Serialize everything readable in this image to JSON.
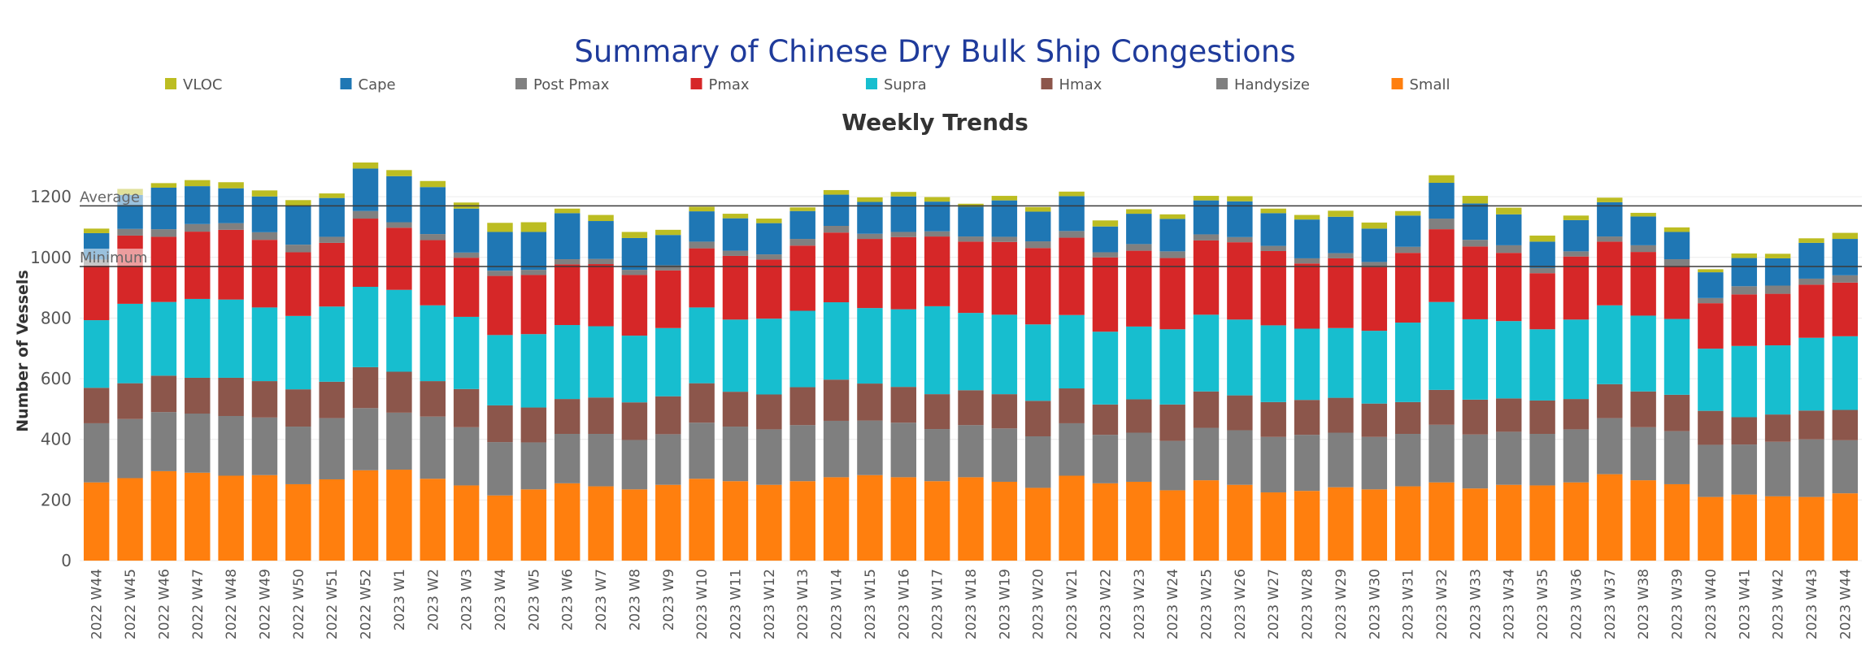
{
  "chart_data": {
    "type": "bar",
    "stacked": true,
    "title": "Summary of Chinese Dry Bulk Ship Congestions",
    "subtitle": "Weekly Trends",
    "ylabel": "Number of Vessels",
    "xlabel": "",
    "ylim": [
      0,
      1380
    ],
    "yticks": [
      0,
      200,
      400,
      600,
      800,
      1000,
      1200
    ],
    "reference_lines": [
      {
        "label": "Average",
        "value": 1170
      },
      {
        "label": "Minimum",
        "value": 970
      }
    ],
    "legend": [
      "VLOC",
      "Cape",
      "Post Pmax",
      "Pmax",
      "Supra",
      "Hmax",
      "Handysize",
      "Small"
    ],
    "categories": [
      "2022 W44",
      "2022 W45",
      "2022 W46",
      "2022 W47",
      "2022 W48",
      "2022 W49",
      "2022 W50",
      "2022 W51",
      "2022 W52",
      "2023 W1",
      "2023 W2",
      "2023 W3",
      "2023 W4",
      "2023 W5",
      "2023 W6",
      "2023 W7",
      "2023 W8",
      "2023 W9",
      "2023 W10",
      "2023 W11",
      "2023 W12",
      "2023 W13",
      "2023 W14",
      "2023 W15",
      "2023 W16",
      "2023 W17",
      "2023 W18",
      "2023 W19",
      "2023 W20",
      "2023 W21",
      "2023 W22",
      "2023 W23",
      "2023 W24",
      "2023 W25",
      "2023 W26",
      "2023 W27",
      "2023 W28",
      "2023 W29",
      "2023 W30",
      "2023 W31",
      "2023 W32",
      "2023 W33",
      "2023 W34",
      "2023 W35",
      "2023 W36",
      "2023 W37",
      "2023 W38",
      "2023 W39",
      "2023 W40",
      "2023 W41",
      "2023 W42",
      "2023 W43",
      "2023 W44"
    ],
    "series": [
      {
        "name": "Small",
        "color": "#ff7f0e",
        "values": [
          258,
          272,
          295,
          290,
          280,
          282,
          252,
          268,
          298,
          300,
          270,
          248,
          215,
          235,
          255,
          245,
          235,
          250,
          270,
          262,
          250,
          262,
          275,
          282,
          275,
          262,
          275,
          260,
          240,
          280,
          255,
          260,
          232,
          265,
          250,
          225,
          230,
          242,
          235,
          245,
          258,
          238,
          250,
          248,
          258,
          285,
          265,
          252,
          210,
          218,
          212,
          210,
          222
        ]
      },
      {
        "name": "Handysize",
        "color": "#7f7f7f",
        "values": [
          195,
          195,
          195,
          195,
          197,
          190,
          190,
          202,
          205,
          188,
          205,
          192,
          176,
          155,
          163,
          173,
          163,
          167,
          185,
          180,
          183,
          185,
          186,
          180,
          180,
          172,
          172,
          176,
          170,
          173,
          160,
          162,
          163,
          173,
          180,
          183,
          185,
          180,
          173,
          173,
          190,
          178,
          175,
          170,
          175,
          185,
          175,
          175,
          172,
          165,
          180,
          190,
          175
        ]
      },
      {
        "name": "Hmax",
        "color": "#8c564b",
        "values": [
          117,
          118,
          120,
          118,
          126,
          120,
          123,
          120,
          135,
          135,
          117,
          126,
          121,
          115,
          115,
          120,
          124,
          125,
          130,
          115,
          115,
          125,
          136,
          122,
          118,
          115,
          115,
          113,
          117,
          115,
          100,
          110,
          120,
          120,
          115,
          115,
          115,
          115,
          110,
          105,
          115,
          115,
          110,
          110,
          100,
          112,
          118,
          120,
          112,
          90,
          90,
          95,
          100
        ]
      },
      {
        "name": "Supra",
        "color": "#17becf",
        "values": [
          223,
          262,
          243,
          260,
          258,
          243,
          242,
          248,
          265,
          270,
          250,
          238,
          232,
          242,
          244,
          235,
          220,
          225,
          250,
          238,
          250,
          252,
          255,
          249,
          256,
          290,
          255,
          262,
          252,
          242,
          240,
          240,
          248,
          253,
          250,
          253,
          235,
          230,
          240,
          262,
          290,
          265,
          255,
          235,
          262,
          260,
          250,
          250,
          205,
          235,
          228,
          240,
          243
        ]
      },
      {
        "name": "Pmax",
        "color": "#d62728",
        "values": [
          180,
          225,
          215,
          222,
          230,
          223,
          210,
          210,
          225,
          205,
          215,
          195,
          195,
          195,
          200,
          205,
          200,
          190,
          195,
          210,
          195,
          215,
          230,
          228,
          238,
          230,
          235,
          240,
          252,
          255,
          245,
          250,
          235,
          245,
          255,
          245,
          215,
          230,
          210,
          230,
          240,
          240,
          225,
          185,
          208,
          210,
          210,
          175,
          150,
          170,
          170,
          175,
          177
        ]
      },
      {
        "name": "Post Pmax",
        "color": "#808080",
        "values": [
          20,
          22,
          25,
          25,
          22,
          25,
          25,
          20,
          25,
          18,
          20,
          17,
          17,
          17,
          17,
          17,
          17,
          17,
          22,
          17,
          17,
          22,
          22,
          17,
          17,
          17,
          17,
          17,
          22,
          22,
          17,
          22,
          22,
          20,
          17,
          17,
          17,
          17,
          17,
          20,
          35,
          22,
          25,
          17,
          17,
          17,
          22,
          22,
          17,
          27,
          27,
          20,
          24
        ]
      },
      {
        "name": "Cape",
        "color": "#1f77b4",
        "values": [
          87,
          112,
          137,
          125,
          115,
          118,
          127,
          128,
          140,
          152,
          155,
          145,
          128,
          125,
          152,
          125,
          105,
          100,
          100,
          107,
          103,
          92,
          103,
          105,
          117,
          98,
          98,
          120,
          98,
          115,
          85,
          100,
          107,
          112,
          118,
          108,
          128,
          120,
          110,
          103,
          118,
          120,
          102,
          87,
          103,
          113,
          95,
          90,
          85,
          93,
          90,
          118,
          120
        ]
      },
      {
        "name": "VLOC",
        "color": "#bcbd22",
        "values": [
          15,
          20,
          15,
          20,
          20,
          20,
          20,
          15,
          20,
          20,
          20,
          20,
          30,
          32,
          15,
          20,
          20,
          17,
          15,
          15,
          15,
          12,
          15,
          15,
          15,
          15,
          10,
          15,
          15,
          15,
          20,
          15,
          15,
          15,
          17,
          15,
          15,
          20,
          20,
          15,
          25,
          25,
          22,
          20,
          15,
          15,
          12,
          15,
          10,
          15,
          15,
          15,
          20
        ]
      }
    ]
  }
}
